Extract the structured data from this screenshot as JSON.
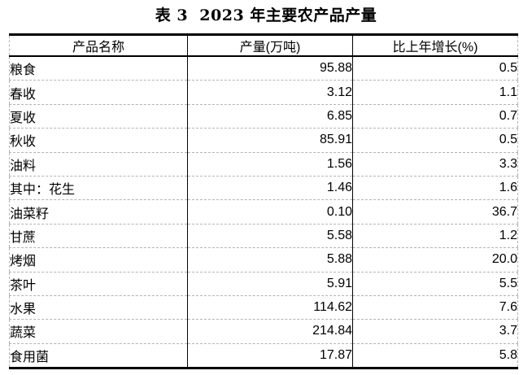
{
  "page_title": "表 3  2023 年主要农产品产量",
  "table": {
    "columns": [
      {
        "label": "产品名称"
      },
      {
        "label": "产量(万吨)"
      },
      {
        "label": "比上年增长(%)"
      }
    ],
    "rows": [
      {
        "name": "粮食",
        "indent": 0,
        "output": "95.88",
        "growth": "0.5"
      },
      {
        "name": "春收",
        "indent": 1,
        "output": "3.12",
        "growth": "1.1"
      },
      {
        "name": "夏收",
        "indent": 1,
        "output": "6.85",
        "growth": "0.7"
      },
      {
        "name": "秋收",
        "indent": 1,
        "output": "85.91",
        "growth": "0.5"
      },
      {
        "name": "油料",
        "indent": 0,
        "output": "1.56",
        "growth": "3.3"
      },
      {
        "name": "其中：花生",
        "indent": 2,
        "output": "1.46",
        "growth": "1.6"
      },
      {
        "name": "油菜籽",
        "indent": 3,
        "output": "0.10",
        "growth": "36.7"
      },
      {
        "name": "甘蔗",
        "indent": 0,
        "output": "5.58",
        "growth": "1.2"
      },
      {
        "name": "烤烟",
        "indent": 0,
        "output": "5.88",
        "growth": "20.0"
      },
      {
        "name": "茶叶",
        "indent": 0,
        "output": "5.91",
        "growth": "5.5"
      },
      {
        "name": "水果",
        "indent": 0,
        "output": "114.62",
        "growth": "7.6"
      },
      {
        "name": "蔬菜",
        "indent": 0,
        "output": "214.84",
        "growth": "3.7"
      },
      {
        "name": "食用菌",
        "indent": 0,
        "output": "17.87",
        "growth": "5.8"
      }
    ]
  },
  "colors": {
    "background": "#ffffff",
    "text": "#000000",
    "border_strong": "#000000",
    "grid_dashed": "#b3b3b3"
  }
}
